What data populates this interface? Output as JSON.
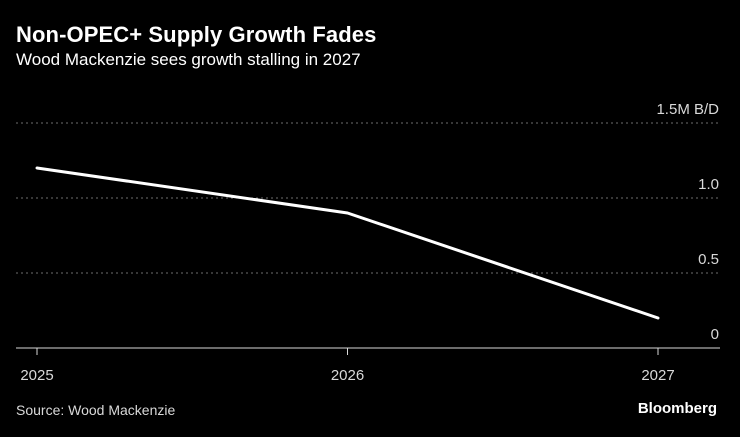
{
  "header": {
    "title": "Non-OPEC+ Supply Growth Fades",
    "subtitle": "Wood Mackenzie sees growth stalling in 2027"
  },
  "footer": {
    "source": "Source: Wood Mackenzie",
    "brand": "Bloomberg"
  },
  "colors": {
    "background": "#000000",
    "line": "#ffffff",
    "grid": "#6e6e6e",
    "text": "#d9d9d9"
  },
  "chart_data": {
    "type": "line",
    "title": "Non-OPEC+ Supply Growth Fades",
    "subtitle": "Wood Mackenzie sees growth stalling in 2027",
    "x": [
      "2025",
      "2026",
      "2027"
    ],
    "series": [
      {
        "values": [
          1.2,
          0.9,
          0.2
        ]
      }
    ],
    "ylim": [
      0,
      1.5
    ],
    "y_ticks": [
      0,
      0.5,
      1.0,
      1.5
    ],
    "y_tick_labels": [
      "0",
      "0.5",
      "1.0",
      "1.5M B/D"
    ],
    "x_tick_labels": [
      "2025",
      "2026",
      "2027"
    ],
    "grid": true,
    "y_axis_side": "right",
    "legend": "none"
  }
}
